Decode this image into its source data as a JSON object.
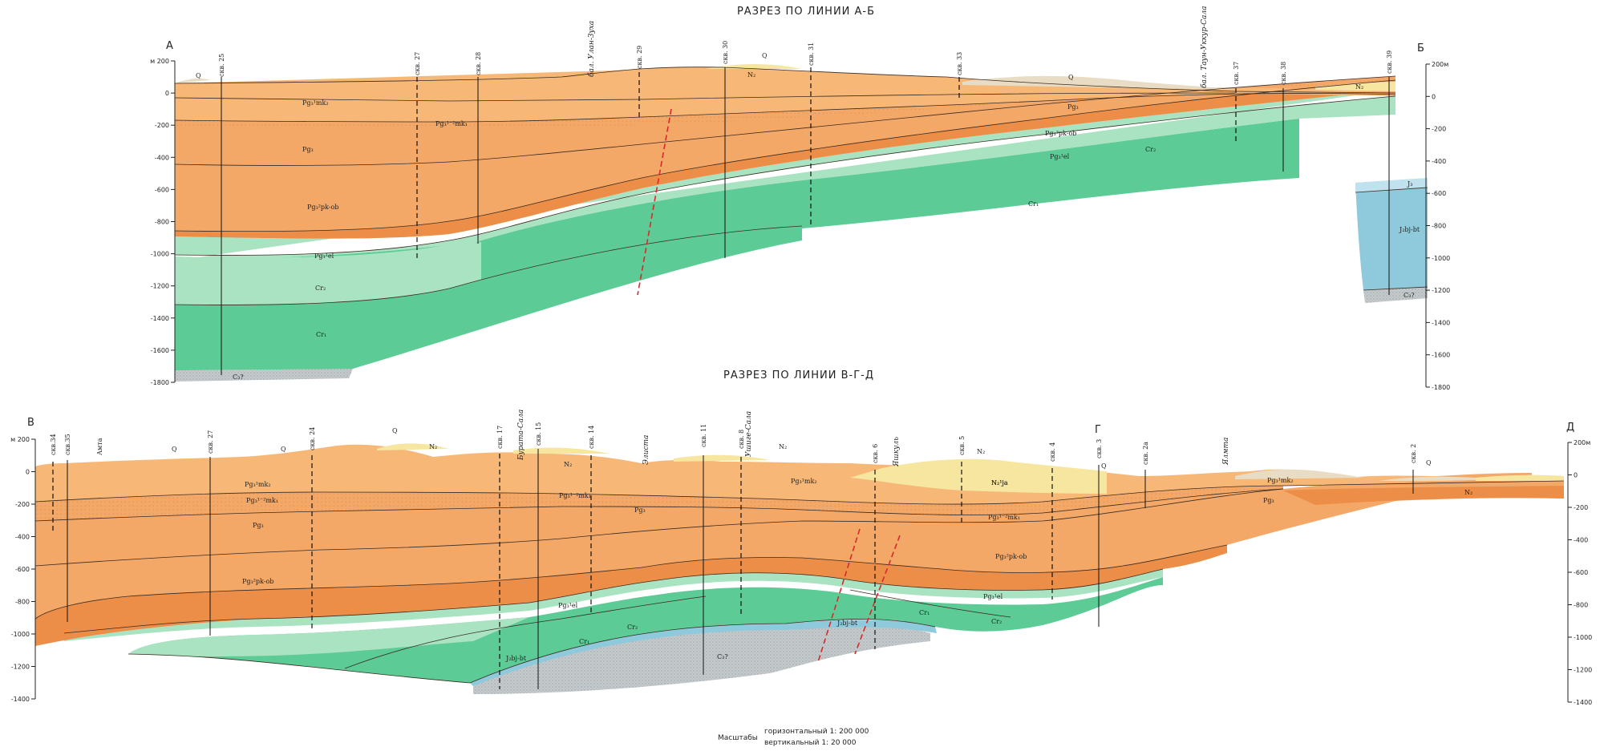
{
  "sections": [
    {
      "id": "ab",
      "title": "РАЗРЕЗ ПО ЛИНИИ А-Б",
      "corner_left": "А",
      "corner_right": "Б",
      "left_axis_ticks": [
        "м 200",
        "0",
        "-200",
        "-400",
        "-600",
        "-800",
        "-1000",
        "-1200",
        "-1400",
        "-1600",
        "-1800"
      ],
      "right_axis_ticks": [
        "200м",
        "0",
        "-200",
        "-400",
        "-600",
        "-800",
        "-1000",
        "-1200",
        "-1400",
        "-1600",
        "-1800"
      ],
      "wells": [
        "скв. 25",
        "скв. 27",
        "скв. 28",
        "скв. 29",
        "скв. 30",
        "скв. 31",
        "скв. 33",
        "скв. 37",
        "скв. 38",
        "скв. 39"
      ],
      "places": [
        "бал. Улан-Зуха",
        "бал. Таун-Уккур-Сала"
      ],
      "units": [
        "Q",
        "Q",
        "Q",
        "N₂",
        "N₂",
        "Pg₃¹mk₂",
        "Pg₃¹⁻²mk₁",
        "Pg₃",
        "Pg₃",
        "Pg₃²pk-ob",
        "Pg₃²pk-ob",
        "Pg₃¹el",
        "Pg₃¹el",
        "Cr₂",
        "Cr₂",
        "Cr₁",
        "Cr₁",
        "C₃?",
        "J₃",
        "J₂bj-bt",
        "C₃?"
      ]
    },
    {
      "id": "vgd",
      "title": "РАЗРЕЗ ПО ЛИНИИ В-Г-Д",
      "corner_left": "В",
      "corner_mid": "Г",
      "corner_right": "Д",
      "left_axis_ticks": [
        "м 200",
        "0",
        "-200",
        "-400",
        "-600",
        "-800",
        "-1000",
        "-1200",
        "-1400"
      ],
      "right_axis_ticks": [
        "200м",
        "0",
        "-200",
        "-400",
        "-600",
        "-800",
        "-1000",
        "-1200",
        "-1400"
      ],
      "wells": [
        "скв.34",
        "скв.35",
        "Амта",
        "скв. 27",
        "скв. 24",
        "скв. 17",
        "скв. 15",
        "скв. 14",
        "скв. 11",
        "скв. 8",
        "скв. 6",
        "скв. 5",
        "скв. 4",
        "скв. 3",
        "скв. 2а",
        "скв. 2"
      ],
      "places": [
        "Бурата-Сала",
        "Элиста",
        "Ушиге-Сала",
        "Яшкуль",
        "Ялмта"
      ],
      "units": [
        "Q",
        "Q",
        "Q",
        "Q",
        "Q",
        "N₂",
        "N₂",
        "N₂",
        "N₂",
        "N₂",
        "N₂¹ja",
        "Pg₃¹mk₂",
        "Pg₃¹⁻²mk₁",
        "Pg₃¹⁻²mk₁",
        "Pg₃¹⁻²mk₁",
        "Pg₃¹mk₂",
        "Pg₃¹mk₂",
        "Pg₃",
        "Pg₃",
        "Pg₃",
        "Pg₃²pk-ob",
        "Pg₃²pk-ob",
        "Pg₃¹el",
        "Pg₃¹el",
        "Cr₂",
        "Cr₂",
        "Cr₁",
        "Cr₁",
        "J₂bj-bt",
        "J₂bj-bt",
        "C₃?"
      ]
    }
  ],
  "scale": {
    "label": "Масштабы",
    "horizontal": "горизонтальный  1: 200 000",
    "vertical": "вертикальный  1: 20 000"
  },
  "colors": {
    "quaternary": "#e9dcc4",
    "neogene": "#f6e6a0",
    "pg_light": "#f7b877",
    "pg_mid": "#f3a868",
    "pg_dark": "#ec8e47",
    "cr2": "#a9e3c2",
    "cr1": "#5ccb96",
    "jurassic": "#8fc9dc",
    "carbon": "#c5cacc",
    "fault": "#d62a2a"
  }
}
